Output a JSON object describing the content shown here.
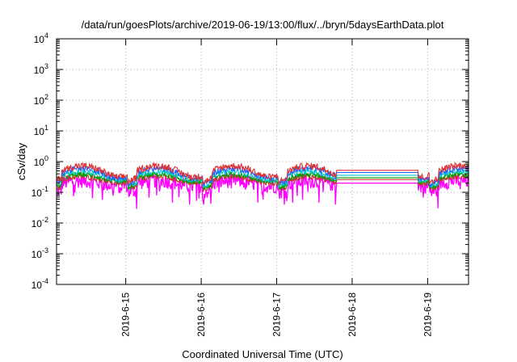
{
  "chart_data": {
    "type": "line",
    "title": "/data/run/goesPlots/archive/2019-06-19/13:00/flux/../bryn/5daysEarthData.plot",
    "xlabel": "Coordinated Universal Time (UTC)",
    "ylabel": "cSv/day",
    "yscale": "log",
    "ylim": [
      0.0001,
      10000
    ],
    "xlim": [
      "2019-06-14T02:00",
      "2019-06-19T13:00"
    ],
    "grid": true,
    "y_ticks": [
      {
        "value": 0.0001,
        "base": "10",
        "exp": "-4"
      },
      {
        "value": 0.001,
        "base": "10",
        "exp": "-3"
      },
      {
        "value": 0.01,
        "base": "10",
        "exp": "-2"
      },
      {
        "value": 0.1,
        "base": "10",
        "exp": "-1"
      },
      {
        "value": 1,
        "base": "10",
        "exp": "0"
      },
      {
        "value": 10,
        "base": "10",
        "exp": "1"
      },
      {
        "value": 100,
        "base": "10",
        "exp": "2"
      },
      {
        "value": 1000,
        "base": "10",
        "exp": "3"
      },
      {
        "value": 10000,
        "base": "10",
        "exp": "4"
      }
    ],
    "x_ticks": [
      {
        "value": "2019-06-15T00:00",
        "label": "2019-6-15"
      },
      {
        "value": "2019-06-16T00:00",
        "label": "2019-6-16"
      },
      {
        "value": "2019-06-17T00:00",
        "label": "2019-6-17"
      },
      {
        "value": "2019-06-18T00:00",
        "label": "2019-6-18"
      },
      {
        "value": "2019-06-19T00:00",
        "label": "2019-6-19"
      }
    ],
    "gap": [
      "2019-06-17T19:00",
      "2019-06-18T21:00"
    ],
    "series": [
      {
        "color": "#ff00ff",
        "level": 0.2,
        "amplitude": 0.1,
        "noise": 0.55
      },
      {
        "color": "#c0392b",
        "level": 0.26,
        "amplitude": 0.12,
        "noise": 0.2
      },
      {
        "color": "#00a000",
        "level": 0.3,
        "amplitude": 0.14,
        "noise": 0.18
      },
      {
        "color": "#00c8c8",
        "level": 0.36,
        "amplitude": 0.16,
        "noise": 0.18
      },
      {
        "color": "#1e64ff",
        "level": 0.44,
        "amplitude": 0.18,
        "noise": 0.22
      },
      {
        "color": "#e03030",
        "level": 0.52,
        "amplitude": 0.2,
        "noise": 0.25
      }
    ]
  }
}
